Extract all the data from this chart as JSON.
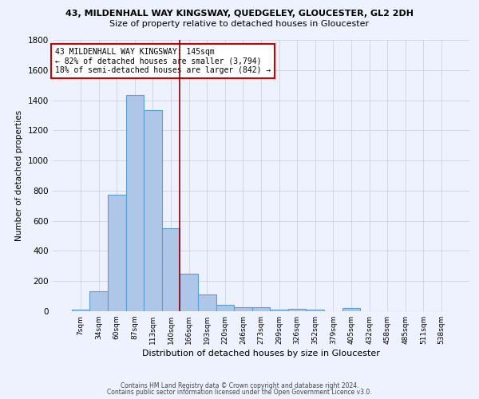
{
  "title": "43, MILDENHALL WAY KINGSWAY, QUEDGELEY, GLOUCESTER, GL2 2DH",
  "subtitle": "Size of property relative to detached houses in Gloucester",
  "xlabel": "Distribution of detached houses by size in Gloucester",
  "ylabel": "Number of detached properties",
  "bar_labels": [
    "7sqm",
    "34sqm",
    "60sqm",
    "87sqm",
    "113sqm",
    "140sqm",
    "166sqm",
    "193sqm",
    "220sqm",
    "246sqm",
    "273sqm",
    "299sqm",
    "326sqm",
    "352sqm",
    "379sqm",
    "405sqm",
    "432sqm",
    "458sqm",
    "485sqm",
    "511sqm",
    "538sqm"
  ],
  "bar_values": [
    10,
    130,
    775,
    1435,
    1335,
    550,
    247,
    110,
    40,
    27,
    27,
    13,
    17,
    10,
    0,
    20,
    0,
    0,
    0,
    0,
    0
  ],
  "bar_color": "#aec6e8",
  "bar_edge_color": "#5a9fd4",
  "vline_x": 5.5,
  "vline_color": "#8B0000",
  "annotation_text": "43 MILDENHALL WAY KINGSWAY: 145sqm\n← 82% of detached houses are smaller (3,794)\n18% of semi-detached houses are larger (842) →",
  "annotation_box_color": "white",
  "annotation_box_edge": "#cc0000",
  "ylim": [
    0,
    1800
  ],
  "yticks": [
    0,
    200,
    400,
    600,
    800,
    1000,
    1200,
    1400,
    1600,
    1800
  ],
  "footer1": "Contains HM Land Registry data © Crown copyright and database right 2024.",
  "footer2": "Contains public sector information licensed under the Open Government Licence v3.0.",
  "bg_color": "#eef2ff",
  "grid_color": "#c8ccd8"
}
